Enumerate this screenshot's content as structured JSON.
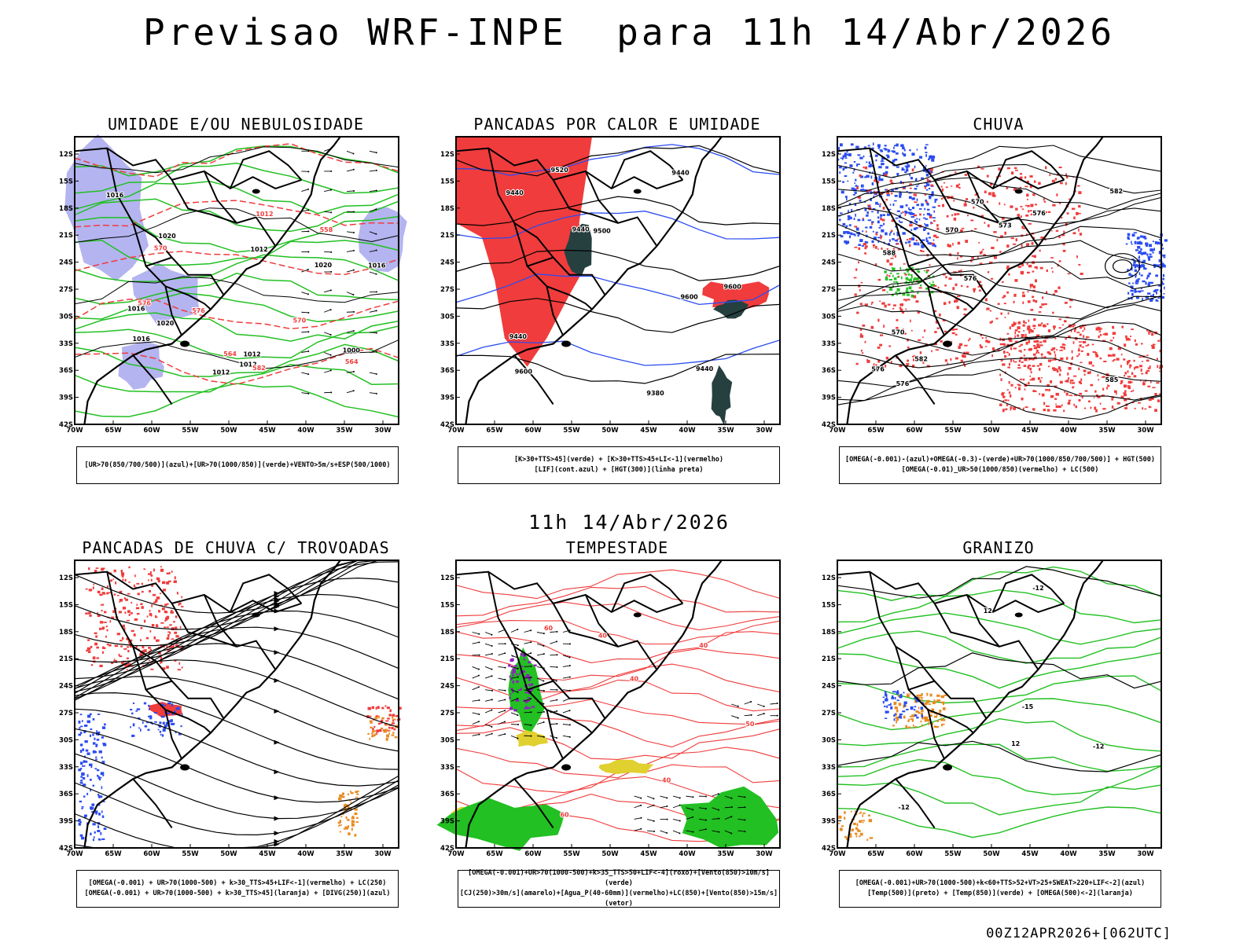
{
  "main_title": "Previsao WRF-INPE  para 11h 14/Abr/2026",
  "middle_title": "11h 14/Abr/2026",
  "footer": "00Z12APR2026+[062UTC]",
  "axes": {
    "lat_ticks": [
      "12S",
      "15S",
      "18S",
      "21S",
      "24S",
      "27S",
      "30S",
      "33S",
      "36S",
      "39S",
      "42S"
    ],
    "lon_ticks": [
      "70W",
      "65W",
      "60W",
      "55W",
      "50W",
      "45W",
      "40W",
      "35W",
      "30W"
    ]
  },
  "colors": {
    "green": "#22c022",
    "red": "#f03c3c",
    "blue": "#2a4cf0",
    "lavender": "#b4b4f0",
    "darkslate": "#264040",
    "yellow": "#e0d030",
    "orange": "#e88a20",
    "purple": "#9020c0"
  },
  "panels": [
    {
      "title": "UMIDADE E/OU NEBULOSIDADE",
      "legend": [
        "[UR>70(850/700/500)](azul)+[UR>70(1000/850)](verde)+VENTO>5m/s+ESP(500/1000)"
      ],
      "labels": [
        "1012",
        "1012",
        "1012",
        "1016",
        "1016",
        "1016",
        "1012",
        "1016",
        "1020",
        "1020",
        "1020",
        "1000",
        "1012",
        "570",
        "576",
        "576",
        "570",
        "564",
        "558",
        "564",
        "582"
      ]
    },
    {
      "title": "PANCADAS POR CALOR E UMIDADE",
      "legend": [
        "[K>30+TTS>45](verde) + [K>30+TTS>45+LI<-1](vermelho)",
        "[LIF](cont.azul) + [HGT(300)](linha preta)"
      ],
      "labels": [
        "9600",
        "9600",
        "9600",
        "9520",
        "9500",
        "9440",
        "9440",
        "9440",
        "9440",
        "9380",
        "9440"
      ]
    },
    {
      "title": "CHUVA",
      "legend": [
        "[OMEGA(-0.001)-(azul)+OMEGA(-0.3)-(verde)+UR>70(1000/850/700/500)] + HGT(500)",
        "[OMEGA(-0.01)_UR>50(1000/850)(vermelho) + LC(500)"
      ],
      "labels": [
        "585",
        "588",
        "582",
        "576",
        "576",
        "576",
        "570",
        "573",
        "570",
        "570",
        "576",
        "582"
      ]
    },
    {
      "title": "PANCADAS DE CHUVA C/ TROVOADAS",
      "legend": [
        "[OMEGA(-0.001) + UR>70(1000-500) + k>30_TTS>45+LIF<-1](vermelho) + LC(250)",
        "[OMEGA(-0.001) + UR>70(1000-500) + k>30_TTS>45](laranja) + [DIVG(250)](azul)"
      ],
      "labels": []
    },
    {
      "title": "TEMPESTADE",
      "legend": [
        "[OMEGA(-0.001)+UR>70(1000-500)+k>35_TTS>50+LIF<-4](roxo)+[Vento(850)>10m/s](verde)",
        "[CJ(250)>30m/s](amarelo)+[Agua_P(40-60mm)](vermelho)+LC(850)+[Vento(850)>15m/s](vetor)"
      ],
      "labels": [
        "50",
        "40",
        "40",
        "40",
        "60",
        "60",
        "40"
      ]
    },
    {
      "title": "GRANIZO",
      "legend": [
        "[OMEGA(-0.001)+UR>70(1000-500)+k<60+TTS>52+VT>25+SWEAT>220+LIF<-2](azul)",
        "[Temp(500)](preto) + [Temp(850)](verde) + [OMEGA(500)<-2](laranja)"
      ],
      "labels": [
        "-12",
        "-12",
        "-15",
        "12",
        "12",
        "-12"
      ]
    }
  ]
}
